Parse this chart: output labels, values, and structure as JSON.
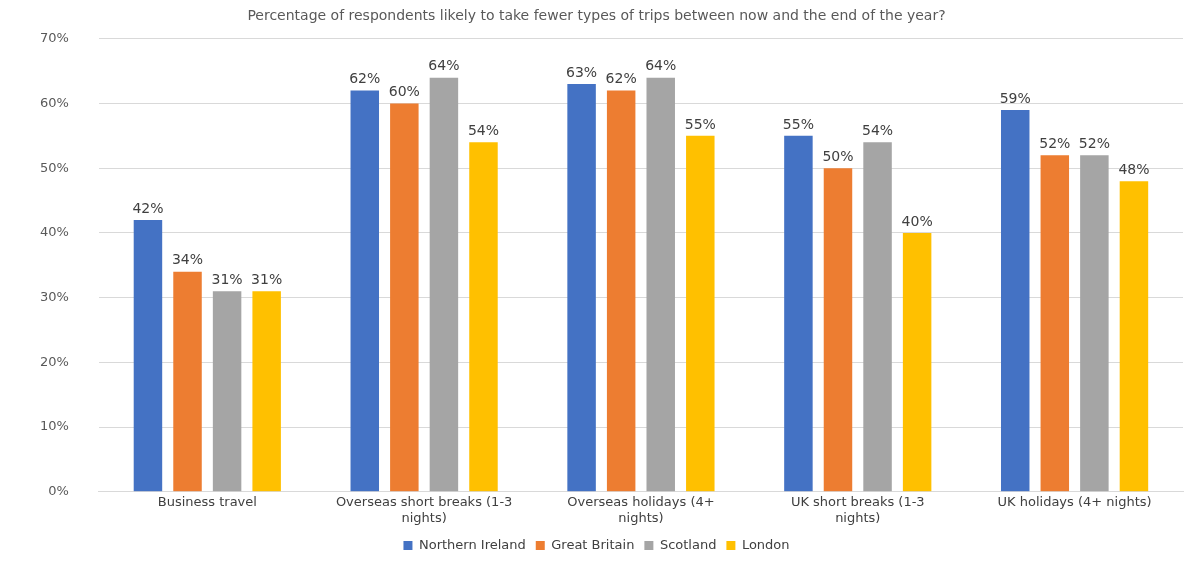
{
  "chart_data": {
    "type": "bar",
    "title": "Percentage of respondents likely to take fewer types of trips between now and the end of the year?",
    "categories": [
      "Business travel",
      "Overseas short breaks (1-3 nights)",
      "Overseas holidays (4+ nights)",
      "UK short breaks (1-3 nights)",
      "UK holidays (4+ nights)"
    ],
    "series": [
      {
        "name": "Northern Ireland",
        "color": "#4472c4",
        "values": [
          42,
          62,
          63,
          55,
          59
        ],
        "value_labels": [
          "42%",
          "62%",
          "63%",
          "55%",
          "59%"
        ]
      },
      {
        "name": "Great Britain",
        "color": "#ed7d31",
        "values": [
          34,
          60,
          62,
          50,
          52
        ],
        "value_labels": [
          "34%",
          "60%",
          "62%",
          "50%",
          "52%"
        ]
      },
      {
        "name": "Scotland",
        "color": "#a5a5a5",
        "values": [
          31,
          64,
          64,
          54,
          52
        ],
        "value_labels": [
          "31%",
          "64%",
          "64%",
          "54%",
          "52%"
        ]
      },
      {
        "name": "London",
        "color": "#ffc000",
        "values": [
          31,
          54,
          55,
          40,
          48
        ],
        "value_labels": [
          "31%",
          "54%",
          "55%",
          "40%",
          "48%"
        ]
      }
    ],
    "ylim": [
      0,
      70
    ],
    "yticks": [
      {
        "value": 0,
        "label": "0%"
      },
      {
        "value": 10,
        "label": "10%"
      },
      {
        "value": 20,
        "label": "20%"
      },
      {
        "value": 30,
        "label": "30%"
      },
      {
        "value": 40,
        "label": "40%"
      },
      {
        "value": 50,
        "label": "50%"
      },
      {
        "value": 60,
        "label": "60%"
      },
      {
        "value": 70,
        "label": "70%"
      }
    ],
    "grid": "y",
    "legend": "bottom"
  }
}
